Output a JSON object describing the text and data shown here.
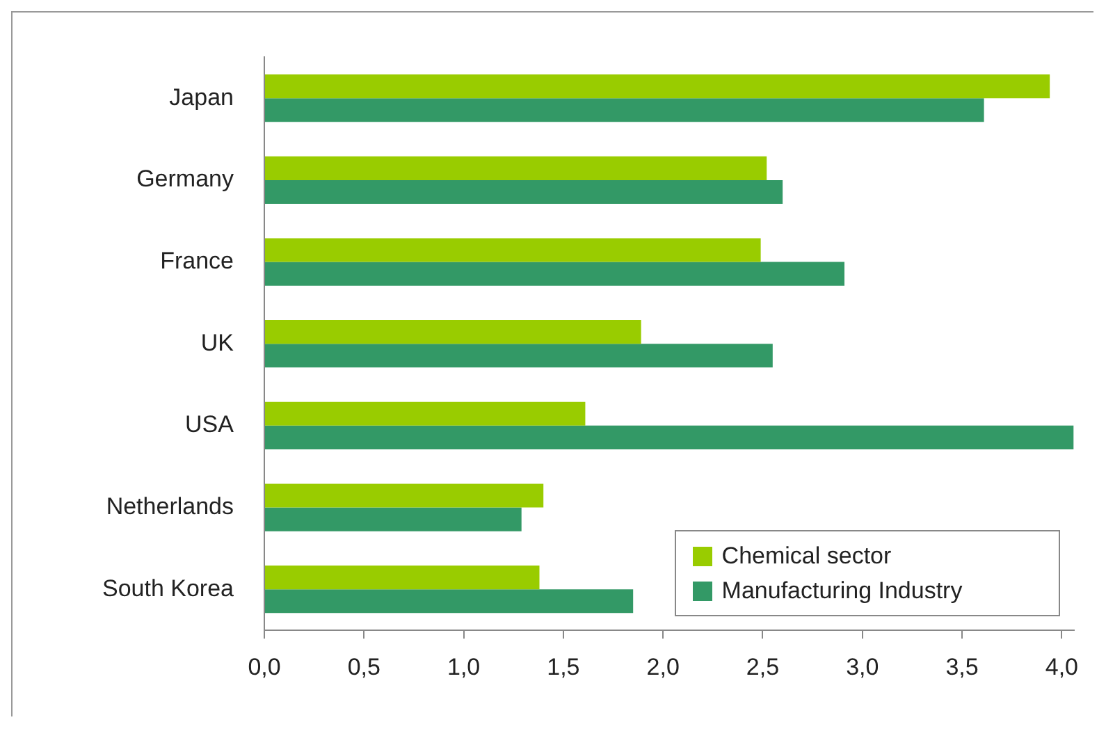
{
  "chart_data": {
    "type": "bar",
    "orientation": "horizontal",
    "categories": [
      "Japan",
      "Germany",
      "France",
      "UK",
      "USA",
      "Netherlands",
      "South Korea"
    ],
    "series": [
      {
        "name": "Chemical sector",
        "color": "#99cc00",
        "values": [
          3.94,
          2.52,
          2.49,
          1.89,
          1.61,
          1.4,
          1.38
        ]
      },
      {
        "name": "Manufacturing Industry",
        "color": "#339966",
        "values": [
          3.61,
          2.6,
          2.91,
          2.55,
          4.06,
          1.29,
          1.85
        ]
      }
    ],
    "xlim": [
      0,
      4.06
    ],
    "xticks": [
      {
        "value": 0,
        "label": "0,0"
      },
      {
        "value": 0.5,
        "label": "0,5"
      },
      {
        "value": 1,
        "label": "1,0"
      },
      {
        "value": 1.5,
        "label": "1,5"
      },
      {
        "value": 2,
        "label": "2,0"
      },
      {
        "value": 2.5,
        "label": "2,5"
      },
      {
        "value": 3,
        "label": "3,0"
      },
      {
        "value": 3.5,
        "label": "3,5"
      },
      {
        "value": 4,
        "label": "4,0"
      }
    ],
    "grid": false,
    "legend": "bottom right"
  }
}
